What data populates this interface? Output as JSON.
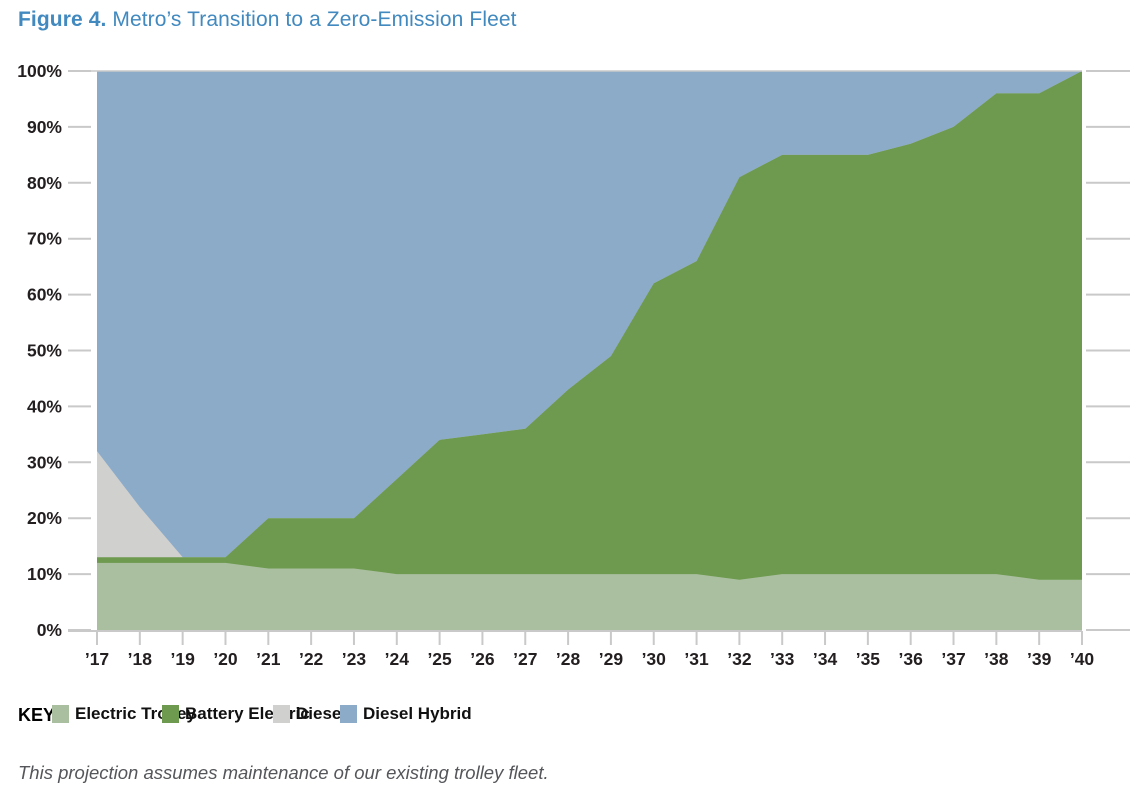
{
  "title": {
    "prefix": "Figure 4.",
    "rest": " Metro’s Transition to a Zero-Emission Fleet",
    "color": "#4189bf"
  },
  "legend": {
    "key_label": "KEY:"
  },
  "footer": {
    "text": "This projection assumes maintenance of our existing trolley fleet."
  },
  "colors": {
    "axis": "#c9c9c9",
    "label_text": "#231f20",
    "background": "#ffffff"
  },
  "chart_data": {
    "type": "area",
    "stacked": true,
    "title": "Metro’s Transition to a Zero-Emission Fleet",
    "xlabel": "",
    "ylabel": "",
    "ylim": [
      0,
      100
    ],
    "grid": false,
    "legend_position": "bottom",
    "y_ticks": [
      0,
      10,
      20,
      30,
      40,
      50,
      60,
      70,
      80,
      90,
      100
    ],
    "y_tick_suffix": "%",
    "x_labels": [
      "’17",
      "’18",
      "’19",
      "’20",
      "’21",
      "’22",
      "’23",
      "’24",
      "’25",
      "’26",
      "’27",
      "’28",
      "’29",
      "’30",
      "’31",
      "’32",
      "’33",
      "’34",
      "’35",
      "’36",
      "’37",
      "’38",
      "’39",
      "’40"
    ],
    "series": [
      {
        "name": "Electric Trolley",
        "color": "#aabfa0",
        "values": [
          12,
          12,
          12,
          12,
          11,
          11,
          11,
          10,
          10,
          10,
          10,
          10,
          10,
          10,
          10,
          9,
          10,
          10,
          10,
          10,
          10,
          10,
          9,
          9
        ]
      },
      {
        "name": "Battery Electric",
        "color": "#6d9a4e",
        "values": [
          1,
          1,
          1,
          1,
          9,
          9,
          9,
          17,
          24,
          25,
          26,
          33,
          39,
          52,
          56,
          72,
          75,
          75,
          75,
          77,
          80,
          86,
          87,
          91
        ]
      },
      {
        "name": "Diesel",
        "color": "#d0d1ce",
        "values": [
          19,
          9,
          0,
          0,
          0,
          0,
          0,
          0,
          0,
          0,
          0,
          0,
          0,
          0,
          0,
          0,
          0,
          0,
          0,
          0,
          0,
          0,
          0,
          0
        ]
      },
      {
        "name": "Diesel Hybrid",
        "color": "#8cabc9",
        "values": [
          68,
          78,
          87,
          87,
          80,
          80,
          80,
          73,
          66,
          65,
          64,
          57,
          51,
          38,
          34,
          19,
          15,
          15,
          15,
          13,
          10,
          4,
          4,
          0
        ]
      }
    ]
  }
}
